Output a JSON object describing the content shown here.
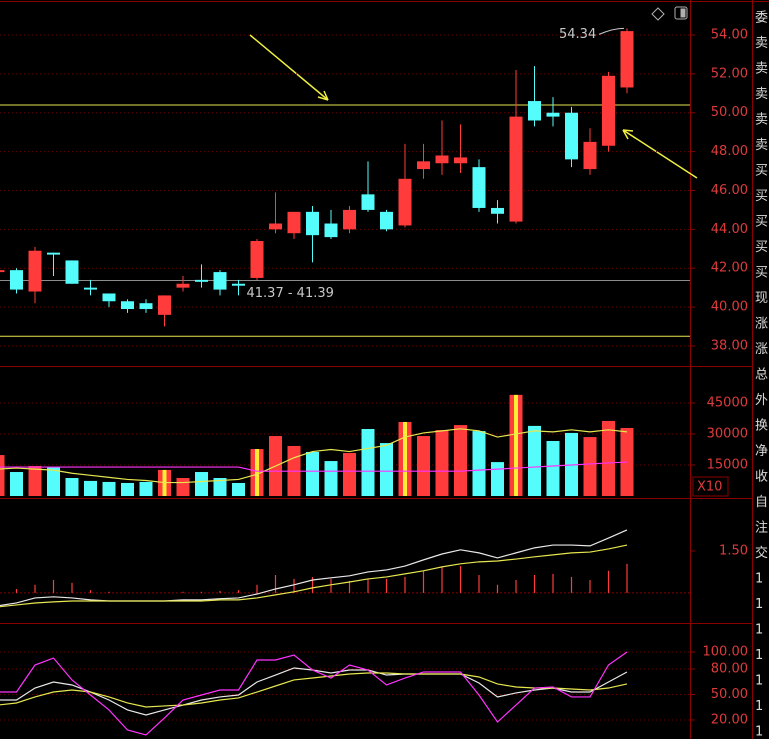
{
  "chart_data": [
    {
      "type": "candlestick",
      "open": [
        41.8,
        41.9,
        40.8,
        42.8,
        42.4,
        41.0,
        40.7,
        40.3,
        40.2,
        39.6,
        41.0,
        41.4,
        41.8,
        41.2,
        41.5,
        44.0,
        43.8,
        44.9,
        44.3,
        44.0,
        45.8,
        44.9,
        44.2,
        47.1,
        47.4,
        47.4,
        47.2,
        45.1,
        44.4,
        50.6,
        50.0,
        50.0,
        47.1,
        48.3,
        51.3
      ],
      "high": [
        42.0,
        42.0,
        43.1,
        42.8,
        42.4,
        41.4,
        40.7,
        40.4,
        40.4,
        40.6,
        41.6,
        42.2,
        41.9,
        41.4,
        43.5,
        45.9,
        44.9,
        45.2,
        45.0,
        45.2,
        47.5,
        45.0,
        48.4,
        48.4,
        49.6,
        49.4,
        47.6,
        45.5,
        52.2,
        52.4,
        50.8,
        50.3,
        49.2,
        52.1,
        54.34
      ],
      "low": [
        41.8,
        40.7,
        40.2,
        41.6,
        41.2,
        40.6,
        40.0,
        39.7,
        39.7,
        39.0,
        40.8,
        41.0,
        40.6,
        40.6,
        41.4,
        43.8,
        43.5,
        42.3,
        43.5,
        43.8,
        44.9,
        43.9,
        44.1,
        46.6,
        46.8,
        46.9,
        44.9,
        44.3,
        44.3,
        49.3,
        49.3,
        47.2,
        46.8,
        48.0,
        51.0
      ],
      "close": [
        41.9,
        40.9,
        42.9,
        42.7,
        41.2,
        40.9,
        40.3,
        39.9,
        39.9,
        40.6,
        41.2,
        41.3,
        40.9,
        41.1,
        43.4,
        44.3,
        44.9,
        43.7,
        43.6,
        45.0,
        45.0,
        44.0,
        46.6,
        47.5,
        47.8,
        47.7,
        45.1,
        44.8,
        49.8,
        49.6,
        49.8,
        47.6,
        48.5,
        51.9,
        54.2
      ],
      "up_color": "#ff3b3b",
      "down_color": "#54fcfc",
      "ylim": [
        37.02,
        55.8
      ],
      "yticks": [
        {
          "value": 38,
          "label": "38.00"
        },
        {
          "value": 40,
          "label": "40.00"
        },
        {
          "value": 42,
          "label": "42.00"
        },
        {
          "value": 44,
          "label": "44.00"
        },
        {
          "value": 46,
          "label": "46.00"
        },
        {
          "value": 48,
          "label": "48.00"
        },
        {
          "value": 50,
          "label": "50.00"
        },
        {
          "value": 52,
          "label": "52.00"
        },
        {
          "value": 54,
          "label": "54.00"
        }
      ],
      "grid": true,
      "hlines": [
        {
          "value": 50.4,
          "color": "#e6e650"
        },
        {
          "value": 38.5,
          "color": "#e6e650"
        }
      ],
      "range_line": {
        "value": 41.37,
        "label": "41.37 - 41.39",
        "color": "#8c8c8c"
      },
      "max_label": {
        "value": 54.34,
        "label": "54.34"
      }
    },
    {
      "type": "bar",
      "values": [
        19800,
        11600,
        14500,
        14000,
        8700,
        7300,
        6800,
        6300,
        6800,
        12600,
        8700,
        11600,
        8700,
        6300,
        22700,
        29000,
        24200,
        21300,
        16900,
        20800,
        32400,
        25600,
        35800,
        29000,
        31900,
        34300,
        31400,
        16400,
        48900,
        33900,
        26600,
        30500,
        28500,
        36300,
        32900
      ],
      "highlight": [
        9,
        14,
        22,
        28
      ],
      "highlight_color": "#ffee33",
      "lines": [
        {
          "color": "#e6e650",
          "values": [
            13000,
            13500,
            13000,
            12500,
            11000,
            10000,
            9000,
            8000,
            7500,
            6500,
            6500,
            7000,
            7500,
            8000,
            10500,
            14500,
            18500,
            21500,
            22500,
            21500,
            23000,
            24500,
            28500,
            30500,
            31500,
            32500,
            31500,
            28500,
            30000,
            31500,
            31000,
            32000,
            31000,
            32000,
            31000
          ]
        },
        {
          "color": "#ff33ff",
          "values": [
            14000,
            14000,
            14000,
            14000,
            14000,
            14000,
            14000,
            14000,
            14000,
            14000,
            14000,
            14000,
            14000,
            14000,
            12000,
            12000,
            12000,
            12000,
            12000,
            12000,
            12000,
            12000,
            12000,
            12000,
            12000,
            12000,
            12500,
            13000,
            13500,
            14000,
            14500,
            15000,
            15500,
            16000,
            16400
          ]
        }
      ],
      "ylim": [
        0,
        61900
      ],
      "yticks": [
        15000,
        30000,
        45000
      ],
      "grid": true,
      "unit_label": "X10"
    },
    {
      "type": "macd",
      "histogram": {
        "color": "#ff3b3b",
        "values": [
          0.04,
          0.14,
          0.29,
          0.46,
          0.36,
          0.1,
          0.04,
          0,
          0,
          0,
          0.04,
          0.04,
          0.07,
          0.1,
          0.29,
          0.64,
          0.5,
          0.57,
          0.5,
          0.43,
          0.5,
          0.5,
          0.57,
          0.78,
          0.93,
          0.96,
          0.64,
          0.29,
          0.46,
          0.64,
          0.68,
          0.57,
          0.46,
          0.79,
          1.04
        ]
      },
      "lines": [
        {
          "color": "#e8e8e8",
          "values": [
            -0.46,
            -0.36,
            -0.18,
            -0.14,
            -0.18,
            -0.25,
            -0.29,
            -0.29,
            -0.29,
            -0.29,
            -0.25,
            -0.25,
            -0.21,
            -0.18,
            -0.04,
            0.14,
            0.29,
            0.46,
            0.54,
            0.61,
            0.75,
            0.82,
            0.96,
            1.18,
            1.39,
            1.54,
            1.43,
            1.25,
            1.43,
            1.61,
            1.71,
            1.71,
            1.68,
            1.96,
            2.25
          ]
        },
        {
          "color": "#e6e650",
          "values": [
            -0.5,
            -0.43,
            -0.36,
            -0.32,
            -0.29,
            -0.29,
            -0.29,
            -0.29,
            -0.29,
            -0.29,
            -0.29,
            -0.29,
            -0.25,
            -0.25,
            -0.18,
            -0.07,
            0.04,
            0.18,
            0.29,
            0.39,
            0.5,
            0.57,
            0.68,
            0.79,
            0.93,
            1.04,
            1.11,
            1.14,
            1.21,
            1.29,
            1.36,
            1.43,
            1.46,
            1.57,
            1.71
          ]
        }
      ],
      "ylim": [
        -1.04,
        3.32
      ],
      "yticks": [
        {
          "value": 1.5,
          "label": "1.50"
        }
      ],
      "grid": false
    },
    {
      "type": "line",
      "lines": [
        {
          "color": "#e8e8e8",
          "values": [
            43.5,
            43.5,
            57.6,
            64.7,
            61.2,
            52.9,
            43.5,
            31.8,
            25.9,
            31.8,
            37.6,
            43.5,
            47.1,
            49.4,
            64.7,
            72.9,
            81.2,
            78.8,
            75.3,
            78.8,
            78.8,
            72.9,
            74.1,
            74.1,
            74.1,
            74.1,
            63.5,
            47.1,
            51.8,
            55.3,
            57.6,
            52.9,
            52.9,
            64.7,
            76.5
          ]
        },
        {
          "color": "#e6e650",
          "values": [
            37.6,
            40,
            47.1,
            52.9,
            55.3,
            52.9,
            47.1,
            40,
            35.3,
            36.5,
            37.6,
            40,
            43.5,
            45.9,
            52.9,
            60,
            67.1,
            69.4,
            71.8,
            74.1,
            75.3,
            75.3,
            74.1,
            74.1,
            74.1,
            74.1,
            70.6,
            62.4,
            58.8,
            57.6,
            57.6,
            56.5,
            55.3,
            57.6,
            62.4
          ]
        },
        {
          "color": "#ff33ff",
          "values": [
            52.9,
            52.9,
            84.7,
            92.9,
            67.1,
            49.4,
            31.8,
            8.2,
            2.4,
            22.4,
            43.5,
            49.4,
            55.3,
            55.3,
            90.6,
            90.6,
            96.5,
            78.8,
            69.4,
            84.7,
            78.8,
            61.2,
            69.4,
            76.5,
            76.5,
            76.5,
            49.4,
            17.6,
            37.6,
            57.6,
            58.8,
            47.1,
            47.1,
            84.7,
            100
          ]
        }
      ],
      "ylim": [
        -2.4,
        131.8
      ],
      "yticks": [
        {
          "value": 20,
          "label": "20.00"
        },
        {
          "value": 50,
          "label": "50.00"
        },
        {
          "value": 80,
          "label": "80.00"
        },
        {
          "value": 100,
          "label": "100.00"
        }
      ],
      "grid": true
    }
  ],
  "side_labels": [
    "委",
    "卖",
    "卖",
    "卖",
    "卖",
    "卖",
    "买",
    "买",
    "买",
    "买",
    "买",
    "现",
    "涨",
    "涨",
    "总",
    "外",
    "换",
    "净",
    "收",
    "自",
    "注",
    "交",
    "1",
    "1",
    "1",
    "1",
    "1",
    "1",
    "1"
  ]
}
